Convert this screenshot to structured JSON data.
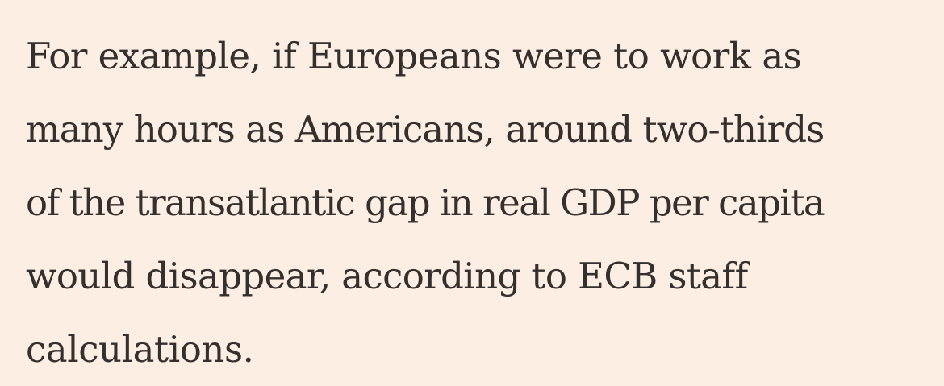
{
  "article": {
    "lines": [
      "For example, if Europeans were to work as",
      "many hours as Americans, around two-thirds",
      "of the transatlantic gap in real GDP per capita",
      "would disappear, according to ECB staff",
      "calculations."
    ]
  },
  "colors": {
    "background": "#fdeee4",
    "text": "#33302e"
  }
}
